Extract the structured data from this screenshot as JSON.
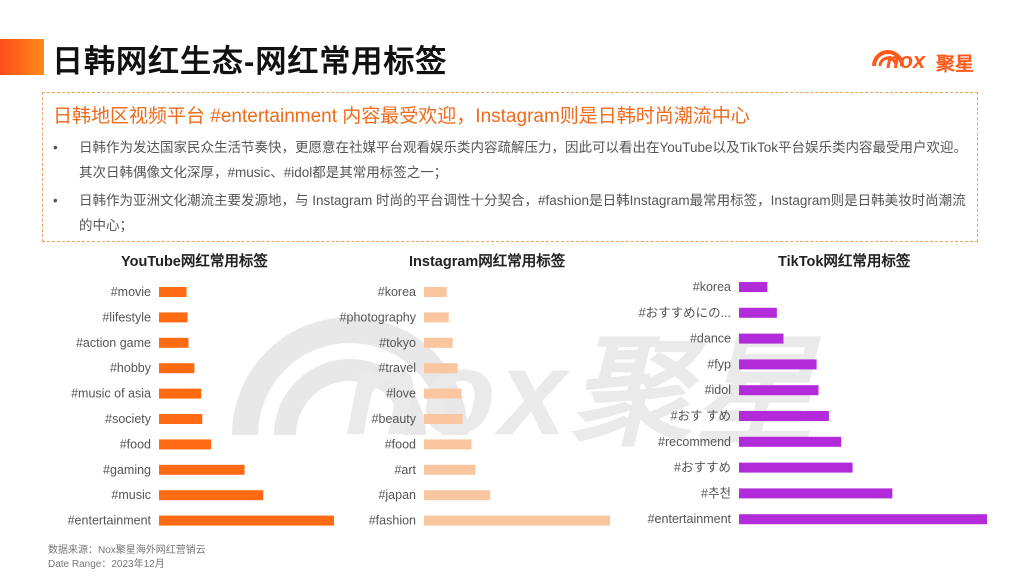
{
  "header": {
    "title": "日韩网红生态-网红常用标签",
    "logo_text": "nox",
    "logo_cn": "聚星"
  },
  "summary": {
    "headline": "日韩地区视频平台 #entertainment 内容最受欢迎，Instagram则是日韩时尚潮流中心",
    "bullets": [
      "日韩作为发达国家民众生活节奏快，更愿意在社媒平台观看娱乐类内容疏解压力，因此可以看出在YouTube以及TikTok平台娱乐类内容最受用户欢迎。其次日韩偶像文化深厚，#music、#idol都是其常用标签之一；",
      "日韩作为亚洲文化潮流主要发源地，与 Instagram 时尚的平台调性十分契合，#fashion是日韩Instagram最常用标签，Instagram则是日韩美妆时尚潮流的中心；"
    ]
  },
  "colors": {
    "youtube": "#ff6a13",
    "instagram": "#f9c6a0",
    "tiktok": "#b22bd9",
    "accent": "#f06a1a"
  },
  "chart_data": [
    {
      "type": "bar",
      "orientation": "horizontal",
      "title": "YouTube网红常用标签",
      "categories": [
        "#movie",
        "#lifestyle",
        "#action game",
        "#hobby",
        "#music of asia",
        "#society",
        "#food",
        "#gaming",
        "#music",
        "#entertainment"
      ],
      "values": [
        28,
        29,
        30,
        36,
        43,
        44,
        53,
        87,
        106,
        178
      ],
      "xlim": [
        0,
        180
      ]
    },
    {
      "type": "bar",
      "orientation": "horizontal",
      "title": "Instagram网红常用标签",
      "categories": [
        "#korea",
        "#photography",
        "#tokyo",
        "#travel",
        "#love",
        "#beauty",
        "#food",
        "#art",
        "#japan",
        "#fashion"
      ],
      "values": [
        23,
        25,
        29,
        34,
        38,
        39,
        48,
        52,
        67,
        188
      ],
      "xlim": [
        0,
        190
      ]
    },
    {
      "type": "bar",
      "orientation": "horizontal",
      "title": "TikTok网红常用标签",
      "categories": [
        "#korea",
        "#おすすめにの...",
        "#dance",
        "#fyp",
        "#idol",
        "#おす すめ",
        "#recommend",
        "#おすすめ",
        "#추천",
        "#entertainment"
      ],
      "values": [
        30,
        40,
        47,
        82,
        84,
        95,
        108,
        120,
        162,
        262
      ],
      "xlim": [
        0,
        262
      ]
    }
  ],
  "footer": {
    "source": "数据来源：Nox聚星海外网红营销云",
    "date_range": "Date Range：2023年12月"
  }
}
